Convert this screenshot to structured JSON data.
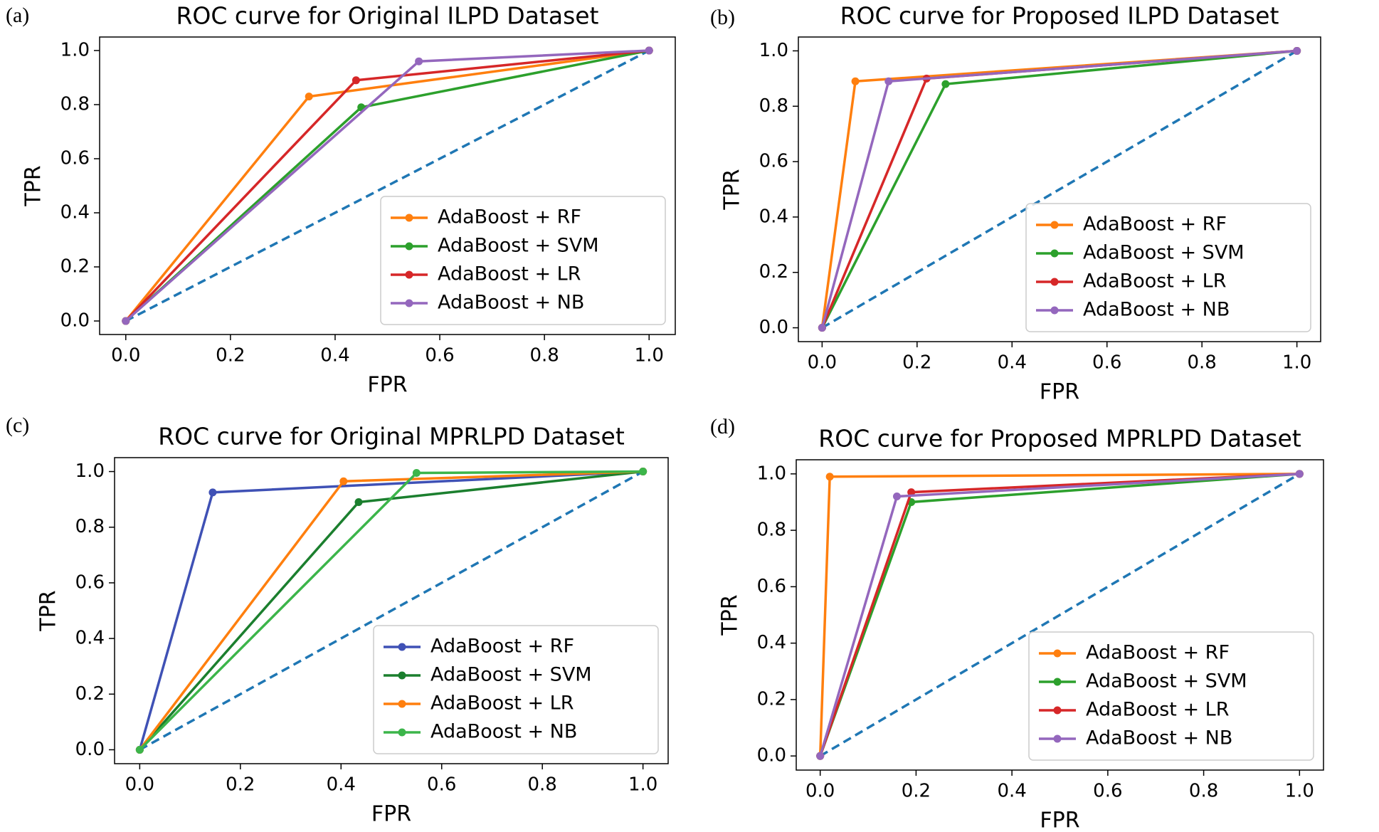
{
  "chart_data": [
    {
      "type": "line",
      "panel_label": "(a)",
      "title": "ROC curve for Original ILPD Dataset",
      "xlabel": "FPR",
      "ylabel": "TPR",
      "xlim": [
        -0.05,
        1.05
      ],
      "ylim": [
        -0.05,
        1.05
      ],
      "xticks": [
        {
          "value": 0,
          "label": "0.0"
        },
        {
          "value": 0.2,
          "label": "0.2"
        },
        {
          "value": 0.4,
          "label": "0.4"
        },
        {
          "value": 0.6,
          "label": "0.6"
        },
        {
          "value": 0.8,
          "label": "0.8"
        },
        {
          "value": 1,
          "label": "1.0"
        }
      ],
      "yticks": [
        {
          "value": 0,
          "label": "0.0"
        },
        {
          "value": 0.2,
          "label": "0.2"
        },
        {
          "value": 0.4,
          "label": "0.4"
        },
        {
          "value": 0.6,
          "label": "0.6"
        },
        {
          "value": 0.8,
          "label": "0.8"
        },
        {
          "value": 1,
          "label": "1.0"
        }
      ],
      "legend": "lower right",
      "chance_line": {
        "x": [
          0,
          1
        ],
        "y": [
          0,
          1
        ],
        "color": "#1f77b4"
      },
      "series": [
        {
          "name": "AdaBoost + RF",
          "color": "#ff7f0e",
          "x": [
            0,
            0.35,
            1
          ],
          "values": [
            0,
            0.83,
            1
          ]
        },
        {
          "name": "AdaBoost + SVM",
          "color": "#2ca02c",
          "x": [
            0,
            0.45,
            1
          ],
          "values": [
            0,
            0.79,
            1
          ]
        },
        {
          "name": "AdaBoost + LR",
          "color": "#d62728",
          "x": [
            0,
            0.44,
            1
          ],
          "values": [
            0,
            0.89,
            1
          ]
        },
        {
          "name": "AdaBoost + NB",
          "color": "#9467bd",
          "x": [
            0,
            0.56,
            1
          ],
          "values": [
            0,
            0.96,
            1
          ]
        }
      ]
    },
    {
      "type": "line",
      "panel_label": "(b)",
      "title": "ROC curve for Proposed ILPD Dataset",
      "xlabel": "FPR",
      "ylabel": "TPR",
      "xlim": [
        -0.05,
        1.05
      ],
      "ylim": [
        -0.05,
        1.05
      ],
      "xticks": [
        {
          "value": 0,
          "label": "0.0"
        },
        {
          "value": 0.2,
          "label": "0.2"
        },
        {
          "value": 0.4,
          "label": "0.4"
        },
        {
          "value": 0.6,
          "label": "0.6"
        },
        {
          "value": 0.8,
          "label": "0.8"
        },
        {
          "value": 1,
          "label": "1.0"
        }
      ],
      "yticks": [
        {
          "value": 0,
          "label": "0.0"
        },
        {
          "value": 0.2,
          "label": "0.2"
        },
        {
          "value": 0.4,
          "label": "0.4"
        },
        {
          "value": 0.6,
          "label": "0.6"
        },
        {
          "value": 0.8,
          "label": "0.8"
        },
        {
          "value": 1,
          "label": "1.0"
        }
      ],
      "legend": "lower right",
      "chance_line": {
        "x": [
          0,
          1
        ],
        "y": [
          0,
          1
        ],
        "color": "#1f77b4"
      },
      "series": [
        {
          "name": "AdaBoost + RF",
          "color": "#ff7f0e",
          "x": [
            0,
            0.07,
            1
          ],
          "values": [
            0,
            0.89,
            1
          ]
        },
        {
          "name": "AdaBoost + SVM",
          "color": "#2ca02c",
          "x": [
            0,
            0.26,
            1
          ],
          "values": [
            0,
            0.88,
            1
          ]
        },
        {
          "name": "AdaBoost + LR",
          "color": "#d62728",
          "x": [
            0,
            0.22,
            1
          ],
          "values": [
            0,
            0.9,
            1
          ]
        },
        {
          "name": "AdaBoost + NB",
          "color": "#9467bd",
          "x": [
            0,
            0.14,
            1
          ],
          "values": [
            0,
            0.89,
            1
          ]
        }
      ]
    },
    {
      "type": "line",
      "panel_label": "(c)",
      "title": "ROC curve for Original MPRLPD Dataset",
      "xlabel": "FPR",
      "ylabel": "TPR",
      "xlim": [
        -0.05,
        1.05
      ],
      "ylim": [
        -0.05,
        1.05
      ],
      "xticks": [
        {
          "value": 0,
          "label": "0.0"
        },
        {
          "value": 0.2,
          "label": "0.2"
        },
        {
          "value": 0.4,
          "label": "0.4"
        },
        {
          "value": 0.6,
          "label": "0.6"
        },
        {
          "value": 0.8,
          "label": "0.8"
        },
        {
          "value": 1,
          "label": "1.0"
        }
      ],
      "yticks": [
        {
          "value": 0,
          "label": "0.0"
        },
        {
          "value": 0.2,
          "label": "0.2"
        },
        {
          "value": 0.4,
          "label": "0.4"
        },
        {
          "value": 0.6,
          "label": "0.6"
        },
        {
          "value": 0.8,
          "label": "0.8"
        },
        {
          "value": 1,
          "label": "1.0"
        }
      ],
      "legend": "lower right",
      "chance_line": {
        "x": [
          0,
          1
        ],
        "y": [
          0,
          1
        ],
        "color": "#1f77b4"
      },
      "series": [
        {
          "name": "AdaBoost + RF",
          "color": "#3f51b5",
          "x": [
            0,
            0.145,
            1
          ],
          "values": [
            0,
            0.925,
            1
          ]
        },
        {
          "name": "AdaBoost + SVM",
          "color": "#1b7f2e",
          "x": [
            0,
            0.435,
            1
          ],
          "values": [
            0,
            0.89,
            1
          ]
        },
        {
          "name": "AdaBoost + LR",
          "color": "#ff7f0e",
          "x": [
            0,
            0.405,
            1
          ],
          "values": [
            0,
            0.965,
            1
          ]
        },
        {
          "name": "AdaBoost + NB",
          "color": "#3cb54a",
          "x": [
            0,
            0.55,
            1
          ],
          "values": [
            0,
            0.995,
            1
          ]
        }
      ]
    },
    {
      "type": "line",
      "panel_label": "(d)",
      "title": "ROC curve for Proposed MPRLPD Dataset",
      "xlabel": "FPR",
      "ylabel": "TPR",
      "xlim": [
        -0.05,
        1.05
      ],
      "ylim": [
        -0.05,
        1.05
      ],
      "xticks": [
        {
          "value": 0,
          "label": "0.0"
        },
        {
          "value": 0.2,
          "label": "0.2"
        },
        {
          "value": 0.4,
          "label": "0.4"
        },
        {
          "value": 0.6,
          "label": "0.6"
        },
        {
          "value": 0.8,
          "label": "0.8"
        },
        {
          "value": 1,
          "label": "1.0"
        }
      ],
      "yticks": [
        {
          "value": 0,
          "label": "0.0"
        },
        {
          "value": 0.2,
          "label": "0.2"
        },
        {
          "value": 0.4,
          "label": "0.4"
        },
        {
          "value": 0.6,
          "label": "0.6"
        },
        {
          "value": 0.8,
          "label": "0.8"
        },
        {
          "value": 1,
          "label": "1.0"
        }
      ],
      "legend": "lower right",
      "chance_line": {
        "x": [
          0,
          1
        ],
        "y": [
          0,
          1
        ],
        "color": "#1f77b4"
      },
      "series": [
        {
          "name": "AdaBoost + RF",
          "color": "#ff7f0e",
          "x": [
            0,
            0.02,
            1
          ],
          "values": [
            0,
            0.99,
            1
          ]
        },
        {
          "name": "AdaBoost + SVM",
          "color": "#2ca02c",
          "x": [
            0,
            0.19,
            1
          ],
          "values": [
            0,
            0.9,
            1
          ]
        },
        {
          "name": "AdaBoost + LR",
          "color": "#d62728",
          "x": [
            0,
            0.19,
            1
          ],
          "values": [
            0,
            0.935,
            1
          ]
        },
        {
          "name": "AdaBoost + NB",
          "color": "#9467bd",
          "x": [
            0,
            0.16,
            1
          ],
          "values": [
            0,
            0.92,
            1
          ]
        }
      ]
    }
  ]
}
